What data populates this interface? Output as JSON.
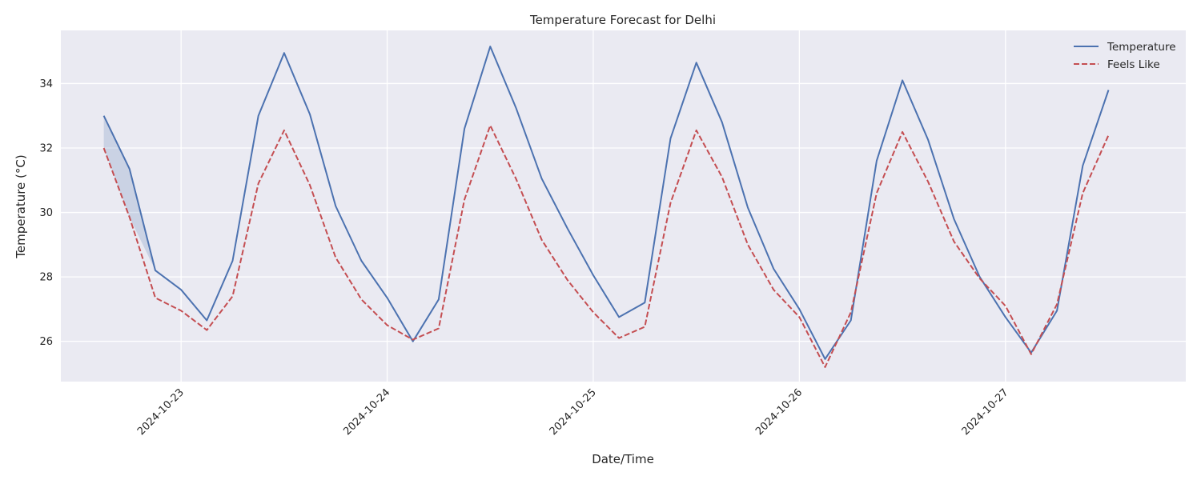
{
  "chart_data": {
    "type": "line",
    "title": "Temperature Forecast for Delhi",
    "xlabel": "Date/Time",
    "ylabel": "Temperature (°C)",
    "x_unit": "date",
    "x_tick_labels": [
      "2024-10-23",
      "2024-10-24",
      "2024-10-25",
      "2024-10-26",
      "2024-10-27"
    ],
    "y_ticks": [
      26,
      28,
      30,
      32,
      34
    ],
    "xlim": [
      "2024-10-22 10:00",
      "2024-10-27 21:00"
    ],
    "ylim": [
      24.75,
      35.65
    ],
    "grid": true,
    "legend": "top-right",
    "x": [
      "2024-10-22 15:00",
      "2024-10-22 18:00",
      "2024-10-22 21:00",
      "2024-10-23 00:00",
      "2024-10-23 03:00",
      "2024-10-23 06:00",
      "2024-10-23 09:00",
      "2024-10-23 12:00",
      "2024-10-23 15:00",
      "2024-10-23 18:00",
      "2024-10-23 21:00",
      "2024-10-24 00:00",
      "2024-10-24 03:00",
      "2024-10-24 06:00",
      "2024-10-24 09:00",
      "2024-10-24 12:00",
      "2024-10-24 15:00",
      "2024-10-24 18:00",
      "2024-10-24 21:00",
      "2024-10-25 00:00",
      "2024-10-25 03:00",
      "2024-10-25 06:00",
      "2024-10-25 09:00",
      "2024-10-25 12:00",
      "2024-10-25 15:00",
      "2024-10-25 18:00",
      "2024-10-25 21:00",
      "2024-10-26 00:00",
      "2024-10-26 03:00",
      "2024-10-26 06:00",
      "2024-10-26 09:00",
      "2024-10-26 12:00",
      "2024-10-26 15:00",
      "2024-10-26 18:00",
      "2024-10-26 21:00",
      "2024-10-27 00:00",
      "2024-10-27 03:00",
      "2024-10-27 06:00",
      "2024-10-27 09:00",
      "2024-10-27 12:00",
      "2024-10-27 15:00"
    ],
    "series": [
      {
        "name": "Temperature",
        "color": "#4c72b0",
        "style": "solid",
        "values": [
          33.0,
          31.35,
          28.2,
          27.6,
          26.65,
          28.5,
          33.0,
          34.95,
          33.05,
          30.2,
          28.5,
          27.35,
          26.0,
          27.3,
          32.6,
          35.15,
          33.25,
          31.05,
          29.5,
          28.05,
          26.75,
          27.2,
          32.3,
          34.65,
          32.8,
          30.15,
          28.25,
          27.0,
          25.45,
          26.65,
          31.6,
          34.1,
          32.25,
          29.8,
          28.0,
          26.75,
          25.65,
          26.95,
          31.45,
          33.8,
          null
        ]
      },
      {
        "name": "Feels Like",
        "color": "#c44e52",
        "style": "dashed",
        "values": [
          32.0,
          29.85,
          27.35,
          26.95,
          26.35,
          27.4,
          30.9,
          32.55,
          30.85,
          28.6,
          27.3,
          26.5,
          26.05,
          26.4,
          30.4,
          32.7,
          31.05,
          29.15,
          27.9,
          26.9,
          26.1,
          26.45,
          30.3,
          32.55,
          31.1,
          29.0,
          27.6,
          26.75,
          25.2,
          26.9,
          30.6,
          32.5,
          30.95,
          29.1,
          27.95,
          27.1,
          25.6,
          27.15,
          30.6,
          32.4,
          null
        ]
      }
    ]
  }
}
